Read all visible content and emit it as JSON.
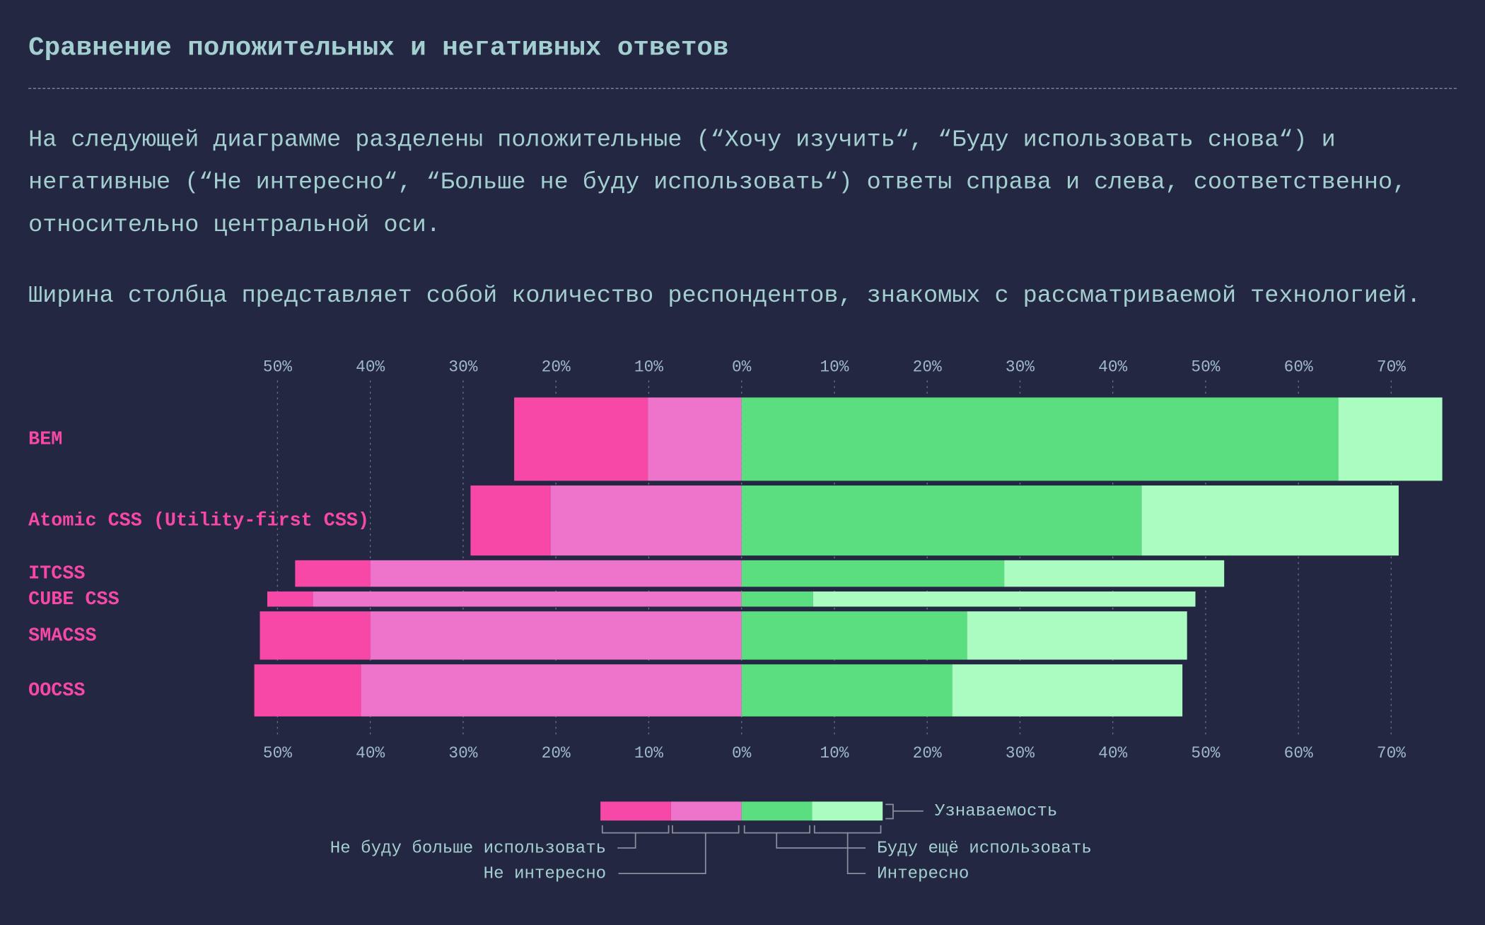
{
  "header": {
    "title": "Сравнение положительных и негативных ответов"
  },
  "paragraphs": [
    "На следующей диаграмме разделены положительные (“Хочу изучить“, “Буду использовать снова“) и негативные (“Не интересно“, “Больше не буду использовать“) ответы справа и слева, соответственно, относительно центральной оси.",
    "Ширина столбца представляет собой количество респондентов, знакомых с рассматриваемой технологией."
  ],
  "chart_data": {
    "type": "diverging-bar",
    "categories": [
      "BEM",
      "Atomic CSS (Utility-first CSS)",
      "ITCSS",
      "CUBE CSS",
      "SMACSS",
      "OOCSS"
    ],
    "series": [
      {
        "name": "Не буду больше использовать",
        "color": "#f748a8",
        "values": [
          -14.4,
          -8.6,
          -8.1,
          -4.9,
          -11.9,
          -11.5
        ]
      },
      {
        "name": "Не интересно",
        "color": "#ee74cb",
        "values": [
          -10.1,
          -20.6,
          -40.0,
          -46.2,
          -40.0,
          -41.0
        ]
      },
      {
        "name": "Буду ещё использовать",
        "color": "#5ade80",
        "values": [
          64.3,
          43.1,
          28.3,
          7.7,
          24.3,
          22.7
        ]
      },
      {
        "name": "Интересно",
        "color": "#abfcc0",
        "values": [
          11.2,
          27.7,
          23.7,
          41.2,
          23.7,
          24.8
        ]
      }
    ],
    "awareness_label": "Узнаваемость",
    "awareness": [
      88,
      74,
      28,
      16,
      51,
      55
    ],
    "xlim": [
      -50,
      70
    ],
    "xticks": [
      {
        "value": -50,
        "label": "50%"
      },
      {
        "value": -40,
        "label": "40%"
      },
      {
        "value": -30,
        "label": "30%"
      },
      {
        "value": -20,
        "label": "20%"
      },
      {
        "value": -10,
        "label": "10%"
      },
      {
        "value": 0,
        "label": "0%"
      },
      {
        "value": 10,
        "label": "10%"
      },
      {
        "value": 20,
        "label": "20%"
      },
      {
        "value": 30,
        "label": "30%"
      },
      {
        "value": 40,
        "label": "40%"
      },
      {
        "value": 50,
        "label": "50%"
      },
      {
        "value": 60,
        "label": "60%"
      },
      {
        "value": 70,
        "label": "70%"
      }
    ],
    "grid": true
  }
}
